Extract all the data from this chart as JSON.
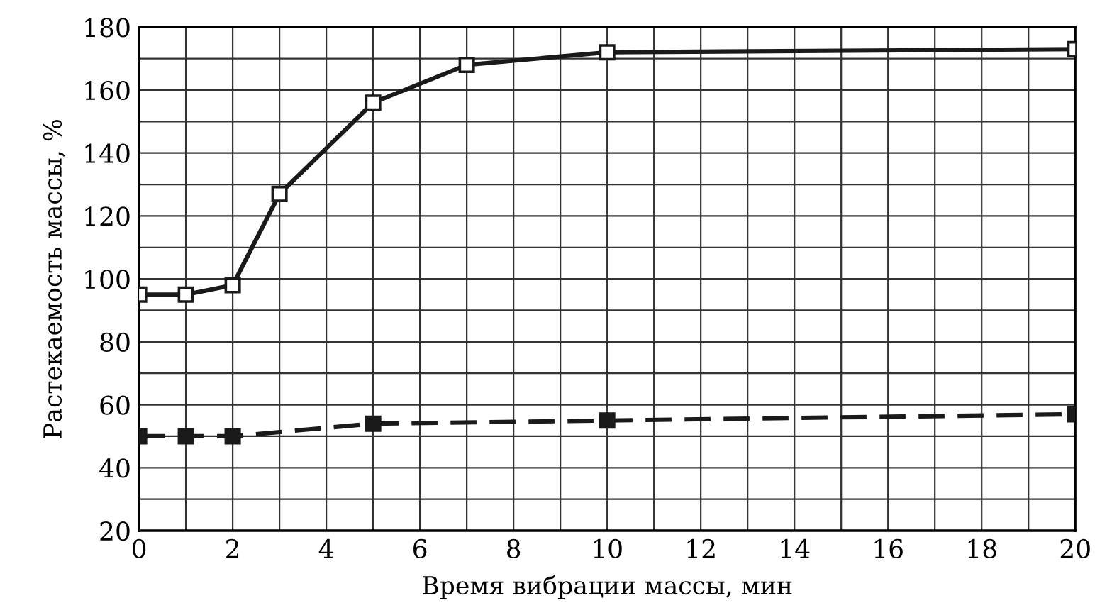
{
  "chart_data": {
    "type": "line",
    "xlabel": "Время вибрации массы, мин",
    "ylabel": "Растекаемость массы, %",
    "series": [
      {
        "x": [
          0,
          1,
          2,
          3,
          5,
          7,
          10,
          20
        ],
        "values": [
          95,
          95,
          98,
          127,
          156,
          168,
          172,
          173
        ],
        "color": "#1a1a1a",
        "marker": "square",
        "line_style": "solid"
      },
      {
        "x": [
          0,
          1,
          2,
          5,
          10,
          20
        ],
        "values": [
          50,
          50,
          50,
          54,
          55,
          57
        ],
        "color": "#1a1a1a",
        "marker": "square",
        "line_style": "dashed"
      }
    ],
    "xlim": [
      0,
      20
    ],
    "xticks": [
      0,
      2,
      4,
      6,
      8,
      10,
      12,
      14,
      16,
      18,
      20
    ],
    "ylim": [
      20,
      180
    ],
    "yticks": [
      20,
      40,
      60,
      80,
      100,
      120,
      140,
      160,
      180
    ],
    "grid": true
  }
}
